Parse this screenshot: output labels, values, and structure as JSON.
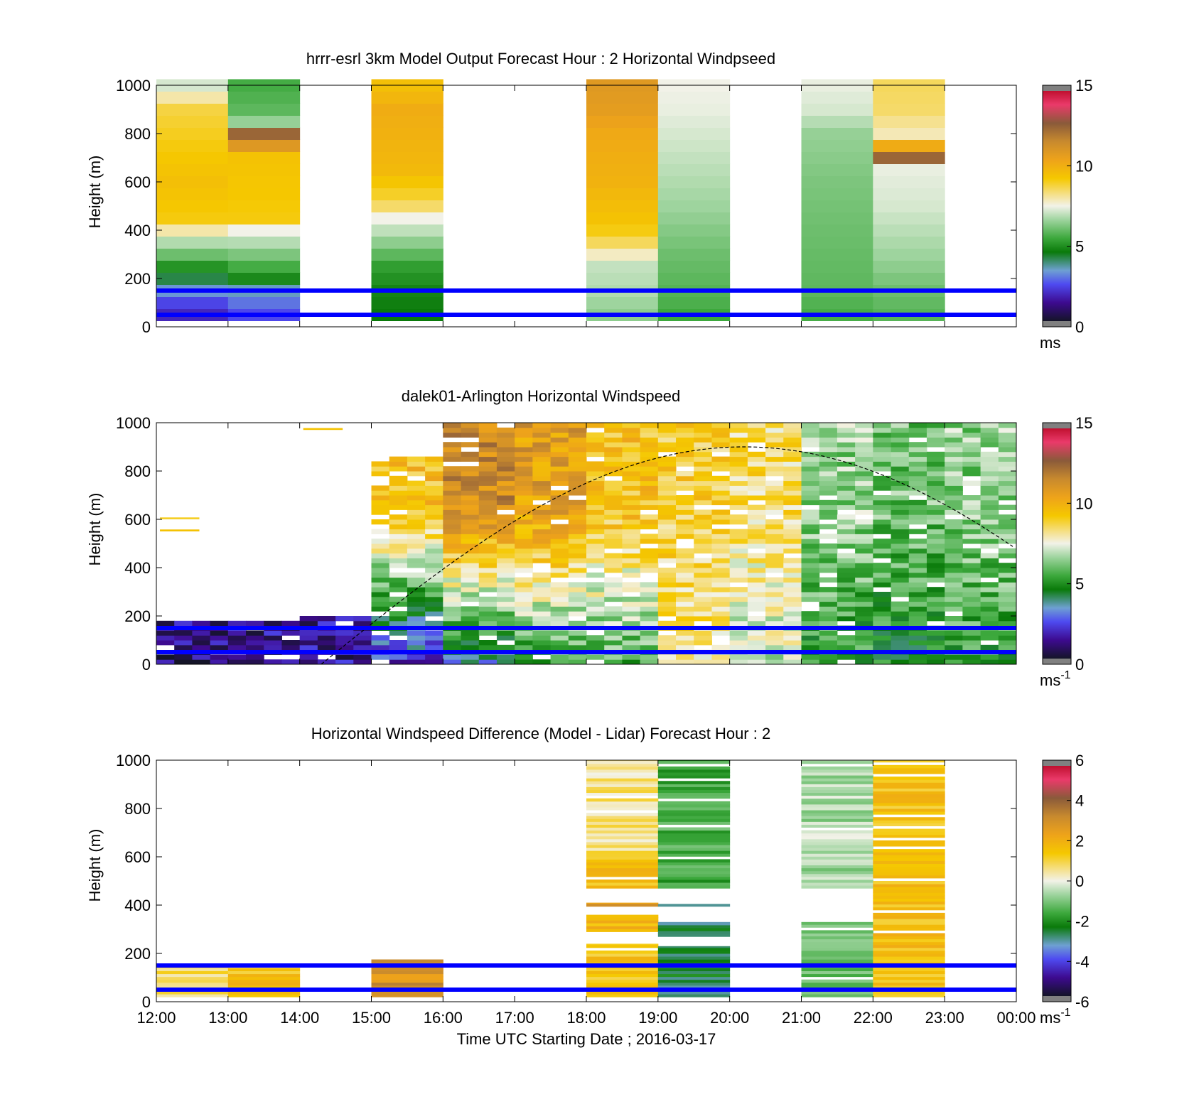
{
  "colors": {
    "axis": "#000000",
    "boundary_lines": "#0000ff",
    "missing": "#ffffff"
  },
  "shared": {
    "xlabel": "Time UTC  Starting Date ; 2016-03-17",
    "ylabel": "Height (m)",
    "x_tick_labels": [
      "12:00",
      "13:00",
      "14:00",
      "15:00",
      "16:00",
      "17:00",
      "18:00",
      "19:00",
      "20:00",
      "21:00",
      "22:00",
      "23:00",
      "00:00"
    ],
    "y_ticks": [
      0,
      200,
      400,
      600,
      800,
      1000
    ],
    "boundary_heights_m": [
      150,
      50
    ]
  },
  "chart_data": [
    {
      "type": "heatmap",
      "title": "hrrr-esrl 3km Model Output   Forecast Hour : 2 Horizontal Windpseed",
      "ylim": [
        0,
        1000
      ],
      "x_range_hours_utc": [
        12,
        24
      ],
      "colorbar": {
        "range": [
          0,
          15
        ],
        "ticks": [
          0,
          5,
          10,
          15
        ],
        "unit_main": "ms",
        "unit_sup": ""
      },
      "columns": [
        {
          "start": 12,
          "end": 13,
          "profile": [
            [
              0,
              1.5
            ],
            [
              60,
              1.8
            ],
            [
              110,
              2.4
            ],
            [
              170,
              3.6
            ],
            [
              250,
              5.0
            ],
            [
              300,
              6.0
            ],
            [
              350,
              6.8
            ],
            [
              400,
              8.0
            ],
            [
              450,
              9.2
            ],
            [
              600,
              9.6
            ],
            [
              900,
              8.8
            ],
            [
              1000,
              7.2
            ]
          ]
        },
        {
          "start": 13,
          "end": 14,
          "profile": [
            [
              0,
              2.0
            ],
            [
              60,
              2.4
            ],
            [
              150,
              3.4
            ],
            [
              200,
              4.8
            ],
            [
              300,
              6.2
            ],
            [
              400,
              7.5
            ],
            [
              450,
              9.2
            ],
            [
              700,
              9.5
            ],
            [
              800,
              12.6
            ],
            [
              850,
              6.5
            ],
            [
              900,
              5.8
            ],
            [
              1000,
              5.5
            ]
          ]
        },
        {
          "start": 15,
          "end": 16,
          "profile": [
            [
              0,
              3.0
            ],
            [
              50,
              4.5
            ],
            [
              150,
              4.7
            ],
            [
              250,
              5.2
            ],
            [
              350,
              6.4
            ],
            [
              450,
              7.5
            ],
            [
              500,
              8.5
            ],
            [
              550,
              9.0
            ],
            [
              650,
              9.8
            ],
            [
              900,
              10.2
            ],
            [
              1000,
              9.6
            ]
          ]
        },
        {
          "start": 18,
          "end": 19,
          "profile": [
            [
              0,
              5.0
            ],
            [
              50,
              6.4
            ],
            [
              150,
              6.8
            ],
            [
              250,
              7.0
            ],
            [
              350,
              8.6
            ],
            [
              420,
              9.4
            ],
            [
              600,
              10.0
            ],
            [
              800,
              10.3
            ],
            [
              900,
              10.8
            ],
            [
              1000,
              11.0
            ]
          ]
        },
        {
          "start": 19,
          "end": 20,
          "profile": [
            [
              0,
              5.2
            ],
            [
              100,
              5.6
            ],
            [
              300,
              6.0
            ],
            [
              500,
              6.6
            ],
            [
              700,
              7.0
            ],
            [
              900,
              7.4
            ],
            [
              1000,
              7.5
            ]
          ]
        },
        {
          "start": 21,
          "end": 22,
          "profile": [
            [
              0,
              5.4
            ],
            [
              150,
              5.8
            ],
            [
              400,
              6.0
            ],
            [
              600,
              6.2
            ],
            [
              800,
              6.5
            ],
            [
              900,
              7.2
            ],
            [
              1000,
              7.4
            ]
          ]
        },
        {
          "start": 22,
          "end": 23,
          "profile": [
            [
              0,
              5.6
            ],
            [
              150,
              6.0
            ],
            [
              300,
              6.6
            ],
            [
              500,
              7.2
            ],
            [
              650,
              7.4
            ],
            [
              700,
              12.6
            ],
            [
              800,
              7.9
            ],
            [
              900,
              8.5
            ],
            [
              1000,
              8.6
            ]
          ]
        }
      ]
    },
    {
      "type": "heatmap",
      "title": "dalek01-Arlington  Horizontal Windspeed",
      "ylim": [
        0,
        1000
      ],
      "x_range_hours_utc": [
        12,
        24
      ],
      "colorbar": {
        "range": [
          0,
          15
        ],
        "ticks": [
          0,
          5,
          10,
          15
        ],
        "unit_main": "ms",
        "unit_sup": "-1"
      },
      "boundary_layer_curve": {
        "peak_time_hours_utc": 20.2,
        "peak_height_m": 900,
        "start_time_hours_utc": 14.3,
        "start_height_m": 0
      },
      "observations": [
        {
          "hour": 12.5,
          "top_m": 180,
          "speed_low": 1.0,
          "speed_high": 1.2,
          "scattered_above": [
            [
              600,
              9.0
            ],
            [
              550,
              9.5
            ]
          ]
        },
        {
          "hour": 13.5,
          "top_m": 180,
          "speed_low": 1.1,
          "speed_high": 1.4
        },
        {
          "hour": 14.5,
          "top_m": 190,
          "speed_low": 1.2,
          "speed_high": 2.0,
          "scattered_above": [
            [
              970,
              9.5
            ]
          ]
        },
        {
          "hour": 15.5,
          "top_m": 850,
          "speed_low": 2.0,
          "speed_high": 9.5
        },
        {
          "hour": 16.5,
          "top_m": 1000,
          "speed_low": 3.5,
          "speed_high": 11.5
        },
        {
          "hour": 17.5,
          "top_m": 1000,
          "speed_low": 5.0,
          "speed_high": 10.8
        },
        {
          "hour": 18.5,
          "top_m": 1000,
          "speed_low": 5.5,
          "speed_high": 9.5
        },
        {
          "hour": 19.5,
          "top_m": 1000,
          "speed_low": 8.0,
          "speed_high": 9.0
        },
        {
          "hour": 20.5,
          "top_m": 1000,
          "speed_low": 7.0,
          "speed_high": 8.5
        },
        {
          "hour": 21.5,
          "top_m": 1000,
          "speed_low": 5.0,
          "speed_high": 6.5
        },
        {
          "hour": 22.5,
          "top_m": 1000,
          "speed_low": 4.8,
          "speed_high": 6.0
        },
        {
          "hour": 23.5,
          "top_m": 1000,
          "speed_low": 5.2,
          "speed_high": 6.4
        }
      ]
    },
    {
      "type": "heatmap",
      "title": "Horizontal Windspeed Difference (Model - Lidar) Forecast Hour : 2",
      "xlabel": "Time UTC  Starting Date ; 2016-03-17",
      "ylim": [
        0,
        1000
      ],
      "x_range_hours_utc": [
        12,
        24
      ],
      "colorbar": {
        "range": [
          -6,
          6
        ],
        "ticks": [
          -6,
          -4,
          -2,
          0,
          2,
          4,
          6
        ],
        "unit_main": "ms",
        "unit_sup": "-1"
      },
      "columns": [
        {
          "start": 12,
          "end": 13,
          "segments": [
            [
              20,
              145,
              0.8
            ]
          ]
        },
        {
          "start": 13,
          "end": 14,
          "segments": [
            [
              20,
              140,
              1.6
            ]
          ]
        },
        {
          "start": 15,
          "end": 16,
          "segments": [
            [
              20,
              175,
              3.0
            ]
          ]
        },
        {
          "start": 18,
          "end": 19,
          "segments": [
            [
              20,
              240,
              1.5
            ],
            [
              290,
              360,
              1.8
            ],
            [
              395,
              410,
              2.6
            ],
            [
              470,
              590,
              1.7
            ],
            [
              590,
              1000,
              0.6
            ]
          ]
        },
        {
          "start": 19,
          "end": 20,
          "segments": [
            [
              20,
              230,
              -2.6
            ],
            [
              270,
              330,
              -2.8
            ],
            [
              395,
              405,
              -2.5
            ],
            [
              470,
              1000,
              -1.6
            ]
          ]
        },
        {
          "start": 21,
          "end": 22,
          "segments": [
            [
              20,
              330,
              -1.2
            ],
            [
              470,
              1000,
              -0.6
            ]
          ]
        },
        {
          "start": 22,
          "end": 23,
          "segments": [
            [
              20,
              1000,
              1.6
            ]
          ]
        }
      ]
    }
  ]
}
